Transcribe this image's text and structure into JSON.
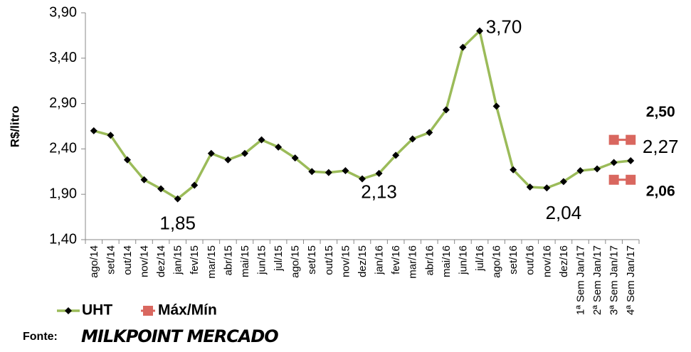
{
  "chart_data": {
    "type": "line",
    "y_label": "R$/litro",
    "categories": [
      "ago/14",
      "set/14",
      "out/14",
      "nov/14",
      "dez/14",
      "jan/15",
      "fev/15",
      "mar/15",
      "abr/15",
      "mai/15",
      "jun/15",
      "jul/15",
      "ago/15",
      "set/15",
      "out/15",
      "nov/15",
      "dez/15",
      "jan/16",
      "fev/16",
      "mar/16",
      "abr/16",
      "mai/16",
      "jun/16",
      "jul/16",
      "ago/16",
      "set/16",
      "out/16",
      "nov/16",
      "dez/16",
      "1ª Sem Jan/17",
      "2ª Sem Jan/17",
      "3ª Sem Jan/17",
      "4ª Sem Jan/17"
    ],
    "ylim": [
      1.4,
      3.9
    ],
    "yticks": [
      {
        "value": 1.4,
        "label": "1,40"
      },
      {
        "value": 1.9,
        "label": "1,90"
      },
      {
        "value": 2.4,
        "label": "2,40"
      },
      {
        "value": 2.9,
        "label": "2,90"
      },
      {
        "value": 3.4,
        "label": "3,40"
      },
      {
        "value": 3.9,
        "label": "3,90"
      }
    ],
    "series": [
      {
        "name": "UHT",
        "color": "#9bbb59",
        "marker_color": "#000000",
        "values": [
          2.6,
          2.55,
          2.28,
          2.06,
          1.96,
          1.85,
          2.0,
          2.35,
          2.28,
          2.35,
          2.5,
          2.42,
          2.3,
          2.15,
          2.14,
          2.16,
          2.07,
          2.13,
          2.33,
          2.51,
          2.58,
          2.83,
          3.52,
          3.7,
          2.87,
          2.17,
          1.98,
          1.97,
          2.04,
          2.16,
          2.18,
          2.25,
          2.27
        ],
        "value_labels": [
          null,
          null,
          null,
          null,
          null,
          "1,85",
          null,
          null,
          null,
          null,
          null,
          null,
          null,
          null,
          null,
          null,
          null,
          "2,13",
          null,
          null,
          null,
          null,
          null,
          "3,70",
          null,
          null,
          null,
          null,
          "2,04",
          null,
          null,
          null,
          "2,27"
        ],
        "value_label_colors": [
          null,
          null,
          null,
          null,
          null,
          "#ff2a00",
          null,
          null,
          null,
          null,
          null,
          null,
          null,
          null,
          null,
          null,
          null,
          "#ff2a00",
          null,
          null,
          null,
          null,
          null,
          "#000000",
          null,
          null,
          null,
          null,
          "#000000",
          null,
          null,
          null,
          "#ff2a00"
        ]
      },
      {
        "name": "Máx/Mín",
        "color": "#d9675f",
        "label_color": "#a6a6a6",
        "high": [
          null,
          null,
          null,
          null,
          null,
          null,
          null,
          null,
          null,
          null,
          null,
          null,
          null,
          null,
          null,
          null,
          null,
          null,
          null,
          null,
          null,
          null,
          null,
          null,
          null,
          null,
          null,
          null,
          null,
          null,
          null,
          2.5,
          2.5
        ],
        "low": [
          null,
          null,
          null,
          null,
          null,
          null,
          null,
          null,
          null,
          null,
          null,
          null,
          null,
          null,
          null,
          null,
          null,
          null,
          null,
          null,
          null,
          null,
          null,
          null,
          null,
          null,
          null,
          null,
          null,
          null,
          null,
          2.06,
          2.06
        ],
        "high_labels": [
          null,
          null,
          null,
          null,
          null,
          null,
          null,
          null,
          null,
          null,
          null,
          null,
          null,
          null,
          null,
          null,
          null,
          null,
          null,
          null,
          null,
          null,
          null,
          null,
          null,
          null,
          null,
          null,
          null,
          null,
          null,
          null,
          "2,50"
        ],
        "low_labels": [
          null,
          null,
          null,
          null,
          null,
          null,
          null,
          null,
          null,
          null,
          null,
          null,
          null,
          null,
          null,
          null,
          null,
          null,
          null,
          null,
          null,
          null,
          null,
          null,
          null,
          null,
          null,
          null,
          null,
          null,
          null,
          null,
          "2,06"
        ]
      }
    ],
    "source_label": "Fonte:",
    "source": "MILKPOINT MERCADO"
  }
}
